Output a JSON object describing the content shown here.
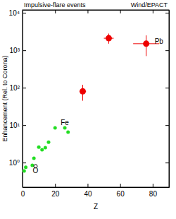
{
  "chart_data": {
    "type": "scatter",
    "title": "Impulsive-flare events",
    "subtitle": "Wind/EPACT",
    "x_label": "Z",
    "y_label": "Enhancement (Rel. to Corona)",
    "log": "y",
    "xlim": [
      0,
      90
    ],
    "xticks": [
      0,
      20,
      40,
      60,
      80
    ],
    "ylim": [
      0.22,
      12000
    ],
    "yticks": [
      {
        "value": 1,
        "label": "10⁰"
      },
      {
        "value": 10,
        "label": "10¹"
      },
      {
        "value": 100,
        "label": "10²"
      },
      {
        "value": 1000,
        "label": "10³"
      },
      {
        "value": 10000,
        "label": "10⁴"
      }
    ],
    "series": [
      {
        "color": "#22dd22",
        "marker": "circle",
        "x": [
          1,
          2,
          6,
          7,
          10,
          12,
          14,
          16,
          20,
          26,
          28
        ],
        "values": [
          0.6,
          0.75,
          0.85,
          1.3,
          2.6,
          2.2,
          2.5,
          3.5,
          8.5,
          8.5,
          6.5
        ]
      },
      {
        "color": "#000000",
        "marker": "open-circle",
        "x": [
          8
        ],
        "values": [
          0.8
        ]
      },
      {
        "color": "#ee0000",
        "marker": "circle",
        "x": [
          37,
          53,
          76
        ],
        "values": [
          80,
          2100,
          1500
        ],
        "y_low": [
          45,
          1500,
          700
        ],
        "y_high": [
          120,
          2800,
          2500
        ],
        "x_err": [
          2,
          3,
          8
        ]
      }
    ],
    "annotations": [
      {
        "text": "Fe",
        "x": 26,
        "y": 8.5
      },
      {
        "text": "O",
        "x": 8,
        "y": 0.8
      },
      {
        "text": "Pb",
        "x": 76,
        "y": 1500
      }
    ]
  }
}
